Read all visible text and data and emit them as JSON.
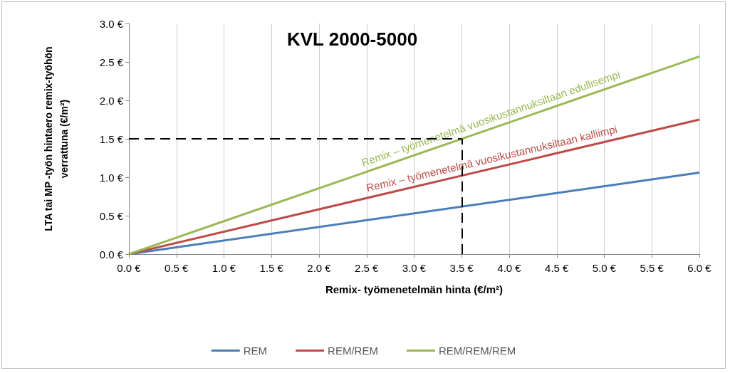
{
  "chart_data": {
    "type": "line",
    "title": "KVL 2000-5000",
    "xlabel": "Remix- työmenetelmän hinta (€/m²)",
    "ylabel": "LTA tai MP -työn hintaero remix-työhön\nverrattuna (€/m²)",
    "x": [
      0,
      6
    ],
    "series": [
      {
        "name": "REM",
        "color": "#4a7ebb",
        "values": [
          0,
          1.06
        ]
      },
      {
        "name": "REM/REM",
        "color": "#be4b48",
        "values": [
          0,
          1.75
        ]
      },
      {
        "name": "REM/REM/REM",
        "color": "#98b954",
        "values": [
          0,
          2.57
        ]
      }
    ],
    "xlim": [
      0,
      6
    ],
    "ylim": [
      0,
      3
    ],
    "xticks": [
      {
        "value": 0,
        "label": "0.0 €"
      },
      {
        "value": 0.5,
        "label": "0.5 €"
      },
      {
        "value": 1,
        "label": "1.0 €"
      },
      {
        "value": 1.5,
        "label": "1.5 €"
      },
      {
        "value": 2,
        "label": "2.0 €"
      },
      {
        "value": 2.5,
        "label": "2.5 €"
      },
      {
        "value": 3,
        "label": "3.0 €"
      },
      {
        "value": 3.5,
        "label": "3.5 €"
      },
      {
        "value": 4,
        "label": "4.0 €"
      },
      {
        "value": 4.5,
        "label": "4.5 €"
      },
      {
        "value": 5,
        "label": "5.0 €"
      },
      {
        "value": 5.5,
        "label": "5.5 €"
      },
      {
        "value": 6,
        "label": "6.0 €"
      }
    ],
    "yticks": [
      {
        "value": 0,
        "label": "0.0 €"
      },
      {
        "value": 0.5,
        "label": "0.5 €"
      },
      {
        "value": 1,
        "label": "1.0 €"
      },
      {
        "value": 1.5,
        "label": "1.5 €"
      },
      {
        "value": 2,
        "label": "2.0 €"
      },
      {
        "value": 2.5,
        "label": "2.5 €"
      },
      {
        "value": 3,
        "label": "3.0 €"
      }
    ],
    "ref_lines": [
      {
        "axis": "y",
        "value": 1.5,
        "color": "#000000",
        "line_style": "dashed"
      },
      {
        "axis": "x",
        "value": 3.5,
        "color": "#000000",
        "line_style": "dashed"
      }
    ],
    "annotations": [
      "Remix – työmenetelmä vuosikustannuksiltaan edullisempi",
      "Remix – työmenetelmä vuosikustannuksiltaan kalliimpi"
    ],
    "grid": "x",
    "legend": "bottom",
    "marker": "none",
    "line_style": "solid"
  }
}
